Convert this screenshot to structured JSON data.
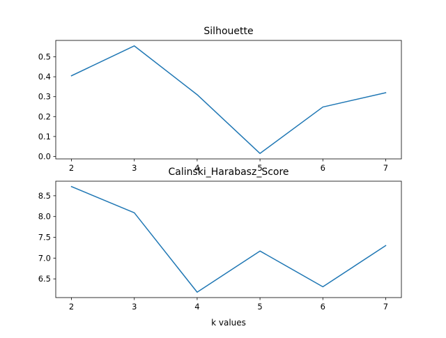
{
  "chart_data": [
    {
      "type": "line",
      "title": "Silhouette",
      "xlabel": "",
      "ylabel": "",
      "x": [
        2,
        3,
        4,
        5,
        6,
        7
      ],
      "series": [
        {
          "values": [
            0.405,
            0.555,
            0.31,
            0.015,
            0.248,
            0.32
          ]
        }
      ],
      "xticks": [
        "2",
        "3",
        "4",
        "5",
        "6",
        "7"
      ],
      "yticks": [
        {
          "value": 0.0,
          "label": "0.0"
        },
        {
          "value": 0.1,
          "label": "0.1"
        },
        {
          "value": 0.2,
          "label": "0.2"
        },
        {
          "value": 0.3,
          "label": "0.3"
        },
        {
          "value": 0.4,
          "label": "0.4"
        },
        {
          "value": 0.5,
          "label": "0.5"
        }
      ],
      "xlim": [
        1.75,
        7.25
      ],
      "ylim": [
        -0.0125,
        0.5825
      ],
      "grid": false,
      "color": "#1f77b4"
    },
    {
      "type": "line",
      "title": "Calinski_Harabasz_Score",
      "xlabel": "k values",
      "ylabel": "",
      "x": [
        2,
        3,
        4,
        5,
        6,
        7
      ],
      "series": [
        {
          "values": [
            8.72,
            8.09,
            6.18,
            7.17,
            6.31,
            7.3
          ]
        }
      ],
      "xticks": [
        "2",
        "3",
        "4",
        "5",
        "6",
        "7"
      ],
      "yticks": [
        {
          "value": 6.5,
          "label": "6.5"
        },
        {
          "value": 7.0,
          "label": "7.0"
        },
        {
          "value": 7.5,
          "label": "7.5"
        },
        {
          "value": 8.0,
          "label": "8.0"
        },
        {
          "value": 8.5,
          "label": "8.5"
        }
      ],
      "xlim": [
        1.75,
        7.25
      ],
      "ylim": [
        6.05,
        8.85
      ],
      "grid": false,
      "color": "#1f77b4"
    }
  ]
}
